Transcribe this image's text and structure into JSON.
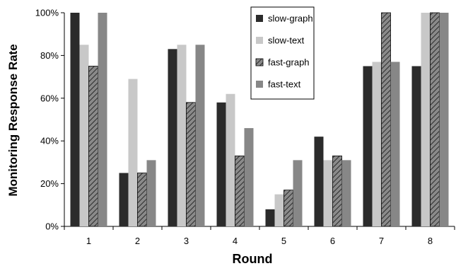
{
  "chart_data": {
    "type": "bar",
    "title": "",
    "xlabel": "Round",
    "ylabel": "Monitoring Response Rate",
    "categories": [
      "1",
      "2",
      "3",
      "4",
      "5",
      "6",
      "7",
      "8"
    ],
    "ylim": [
      0,
      100
    ],
    "yticks": [
      0,
      20,
      40,
      60,
      80,
      100
    ],
    "ytick_labels": [
      "0%",
      "20%",
      "40%",
      "60%",
      "80%",
      "100%"
    ],
    "grid": false,
    "legend_position": "top-center",
    "series": [
      {
        "name": "slow-graph",
        "color": "#2b2b2b",
        "pattern": "solid",
        "values": [
          100,
          25,
          83,
          58,
          8,
          42,
          75,
          75
        ]
      },
      {
        "name": "slow-text",
        "color": "#c8c8c8",
        "pattern": "solid",
        "values": [
          85,
          69,
          85,
          62,
          15,
          31,
          77,
          100
        ]
      },
      {
        "name": "fast-graph",
        "color": "#7a7a7a",
        "pattern": "hatched",
        "values": [
          75,
          25,
          58,
          33,
          17,
          33,
          100,
          100
        ]
      },
      {
        "name": "fast-text",
        "color": "#878787",
        "pattern": "solid",
        "values": [
          100,
          31,
          85,
          46,
          31,
          31,
          77,
          100
        ]
      }
    ]
  }
}
